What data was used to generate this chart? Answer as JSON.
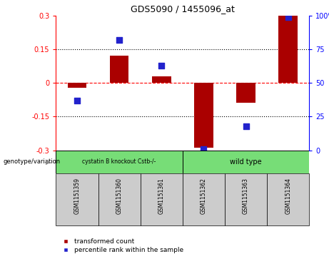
{
  "title": "GDS5090 / 1455096_at",
  "samples": [
    "GSM1151359",
    "GSM1151360",
    "GSM1151361",
    "GSM1151362",
    "GSM1151363",
    "GSM1151364"
  ],
  "red_bars": [
    -0.022,
    0.122,
    0.03,
    -0.29,
    -0.09,
    0.3
  ],
  "blue_dots": [
    37,
    82,
    63,
    1,
    18,
    99
  ],
  "ylim_left": [
    -0.3,
    0.3
  ],
  "ylim_right": [
    0,
    100
  ],
  "yticks_left": [
    -0.3,
    -0.15,
    0,
    0.15,
    0.3
  ],
  "yticks_right": [
    0,
    25,
    50,
    75,
    100
  ],
  "hlines_dotted": [
    -0.15,
    0.15
  ],
  "hline_dashed": 0,
  "bar_color": "#aa0000",
  "dot_color": "#2222cc",
  "group1_label": "cystatin B knockout Cstb-/-",
  "group2_label": "wild type",
  "group_color": "#77dd77",
  "sample_box_color": "#cccccc",
  "group1_indices": [
    0,
    1,
    2
  ],
  "group2_indices": [
    3,
    4,
    5
  ],
  "genotype_label": "genotype/variation",
  "legend1": "transformed count",
  "legend2": "percentile rank within the sample",
  "bar_width": 0.45,
  "dot_size": 28,
  "fig_width": 4.61,
  "fig_height": 3.63,
  "dpi": 100
}
